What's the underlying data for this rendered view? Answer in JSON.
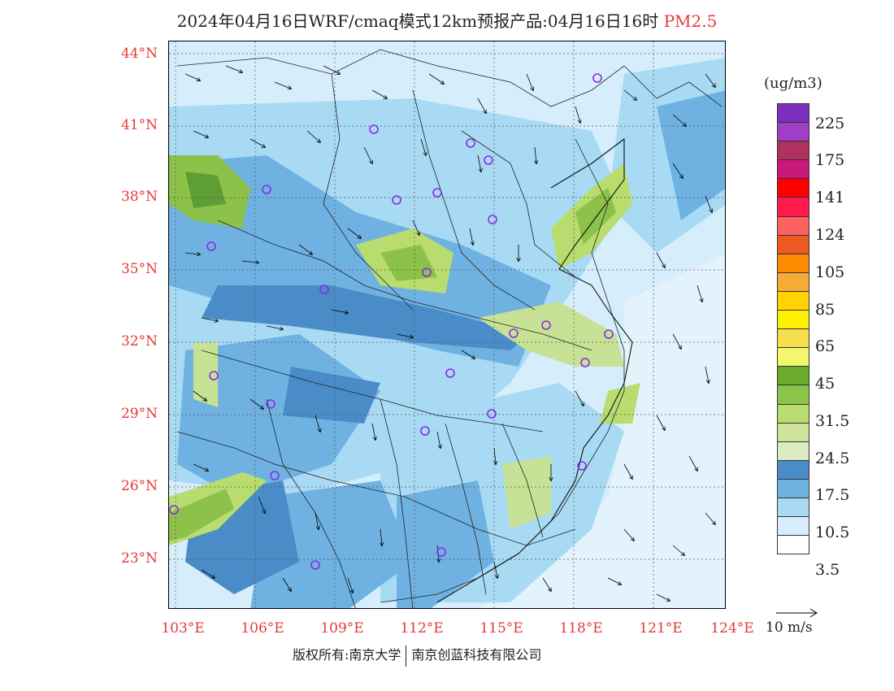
{
  "title": {
    "main": "2024年04月16日WRF/cmaq模式12km预报产品:04月16日16时",
    "pollutant": "PM2.5"
  },
  "map": {
    "lat_labels": [
      "44°N",
      "41°N",
      "38°N",
      "35°N",
      "32°N",
      "29°N",
      "26°N",
      "23°N"
    ],
    "lon_labels": [
      "103°E",
      "106°E",
      "109°E",
      "112°E",
      "115°E",
      "118°E",
      "121°E",
      "124°E"
    ],
    "colors": {
      "background": "#d6eefb",
      "low": "#a8daf4",
      "mid": "#6fb2e2",
      "high": "#4a8cc8",
      "green_light": "#c7e294",
      "green": "#8cc24a",
      "green_dark": "#5e9e35",
      "marker": "#8a2be2"
    }
  },
  "legend": {
    "unit": "(ug/m3)",
    "labels": [
      "225",
      "175",
      "141",
      "124",
      "105",
      "85",
      "65",
      "45",
      "31.5",
      "24.5",
      "17.5",
      "10.5",
      "3.5"
    ],
    "swatches": [
      "#7b2fbe",
      "#a03ec8",
      "#b03060",
      "#c8187a",
      "#ff0000",
      "#ff1a4b",
      "#ff6060",
      "#ee5a24",
      "#ff8c00",
      "#f5ab35",
      "#ffd200",
      "#fff000",
      "#f4e04d",
      "#f2f76c",
      "#6aaa2c",
      "#8cc44a",
      "#b9dc6e",
      "#cfe49a",
      "#dbecc0",
      "#4a8cc8",
      "#6fb2e2",
      "#a8daf4",
      "#d6eefb",
      "#ffffff"
    ]
  },
  "wind_reference": {
    "label": "10 m/s"
  },
  "footer": {
    "copyright": "版权所有:南京大学",
    "company": "南京创蓝科技有限公司"
  }
}
